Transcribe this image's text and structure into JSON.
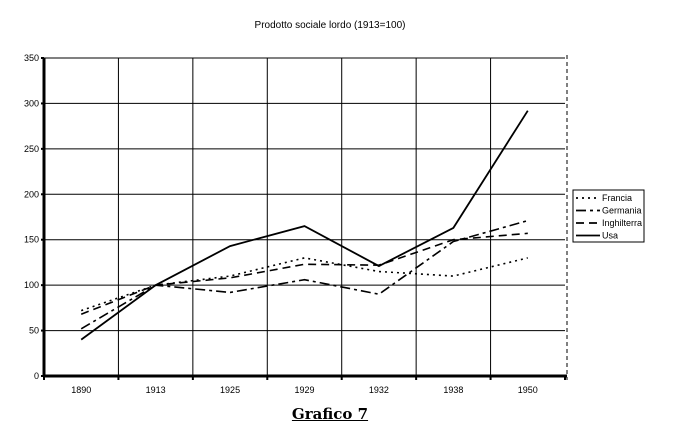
{
  "chart_data": {
    "type": "line",
    "title": "Prodotto sociale lordo (1913=100)",
    "caption": "Grafico 7",
    "categories": [
      "1890",
      "1913",
      "1925",
      "1929",
      "1932",
      "1938",
      "1950"
    ],
    "ylim": [
      0,
      350
    ],
    "yticks": [
      0,
      50,
      100,
      150,
      200,
      250,
      300,
      350
    ],
    "grid": true,
    "legend": "right",
    "series": [
      {
        "name": "Francia",
        "dash": "2,4",
        "values": [
          72,
          100,
          110,
          130,
          115,
          110,
          130
        ]
      },
      {
        "name": "Germania",
        "dash": "10,4,3,4",
        "values": [
          52,
          100,
          92,
          106,
          90,
          148,
          171
        ]
      },
      {
        "name": "Inghilterra",
        "dash": "8,5",
        "values": [
          68,
          100,
          108,
          123,
          122,
          150,
          157
        ]
      },
      {
        "name": "Usa",
        "dash": "",
        "values": [
          40,
          100,
          143,
          165,
          121,
          163,
          292
        ]
      }
    ]
  }
}
